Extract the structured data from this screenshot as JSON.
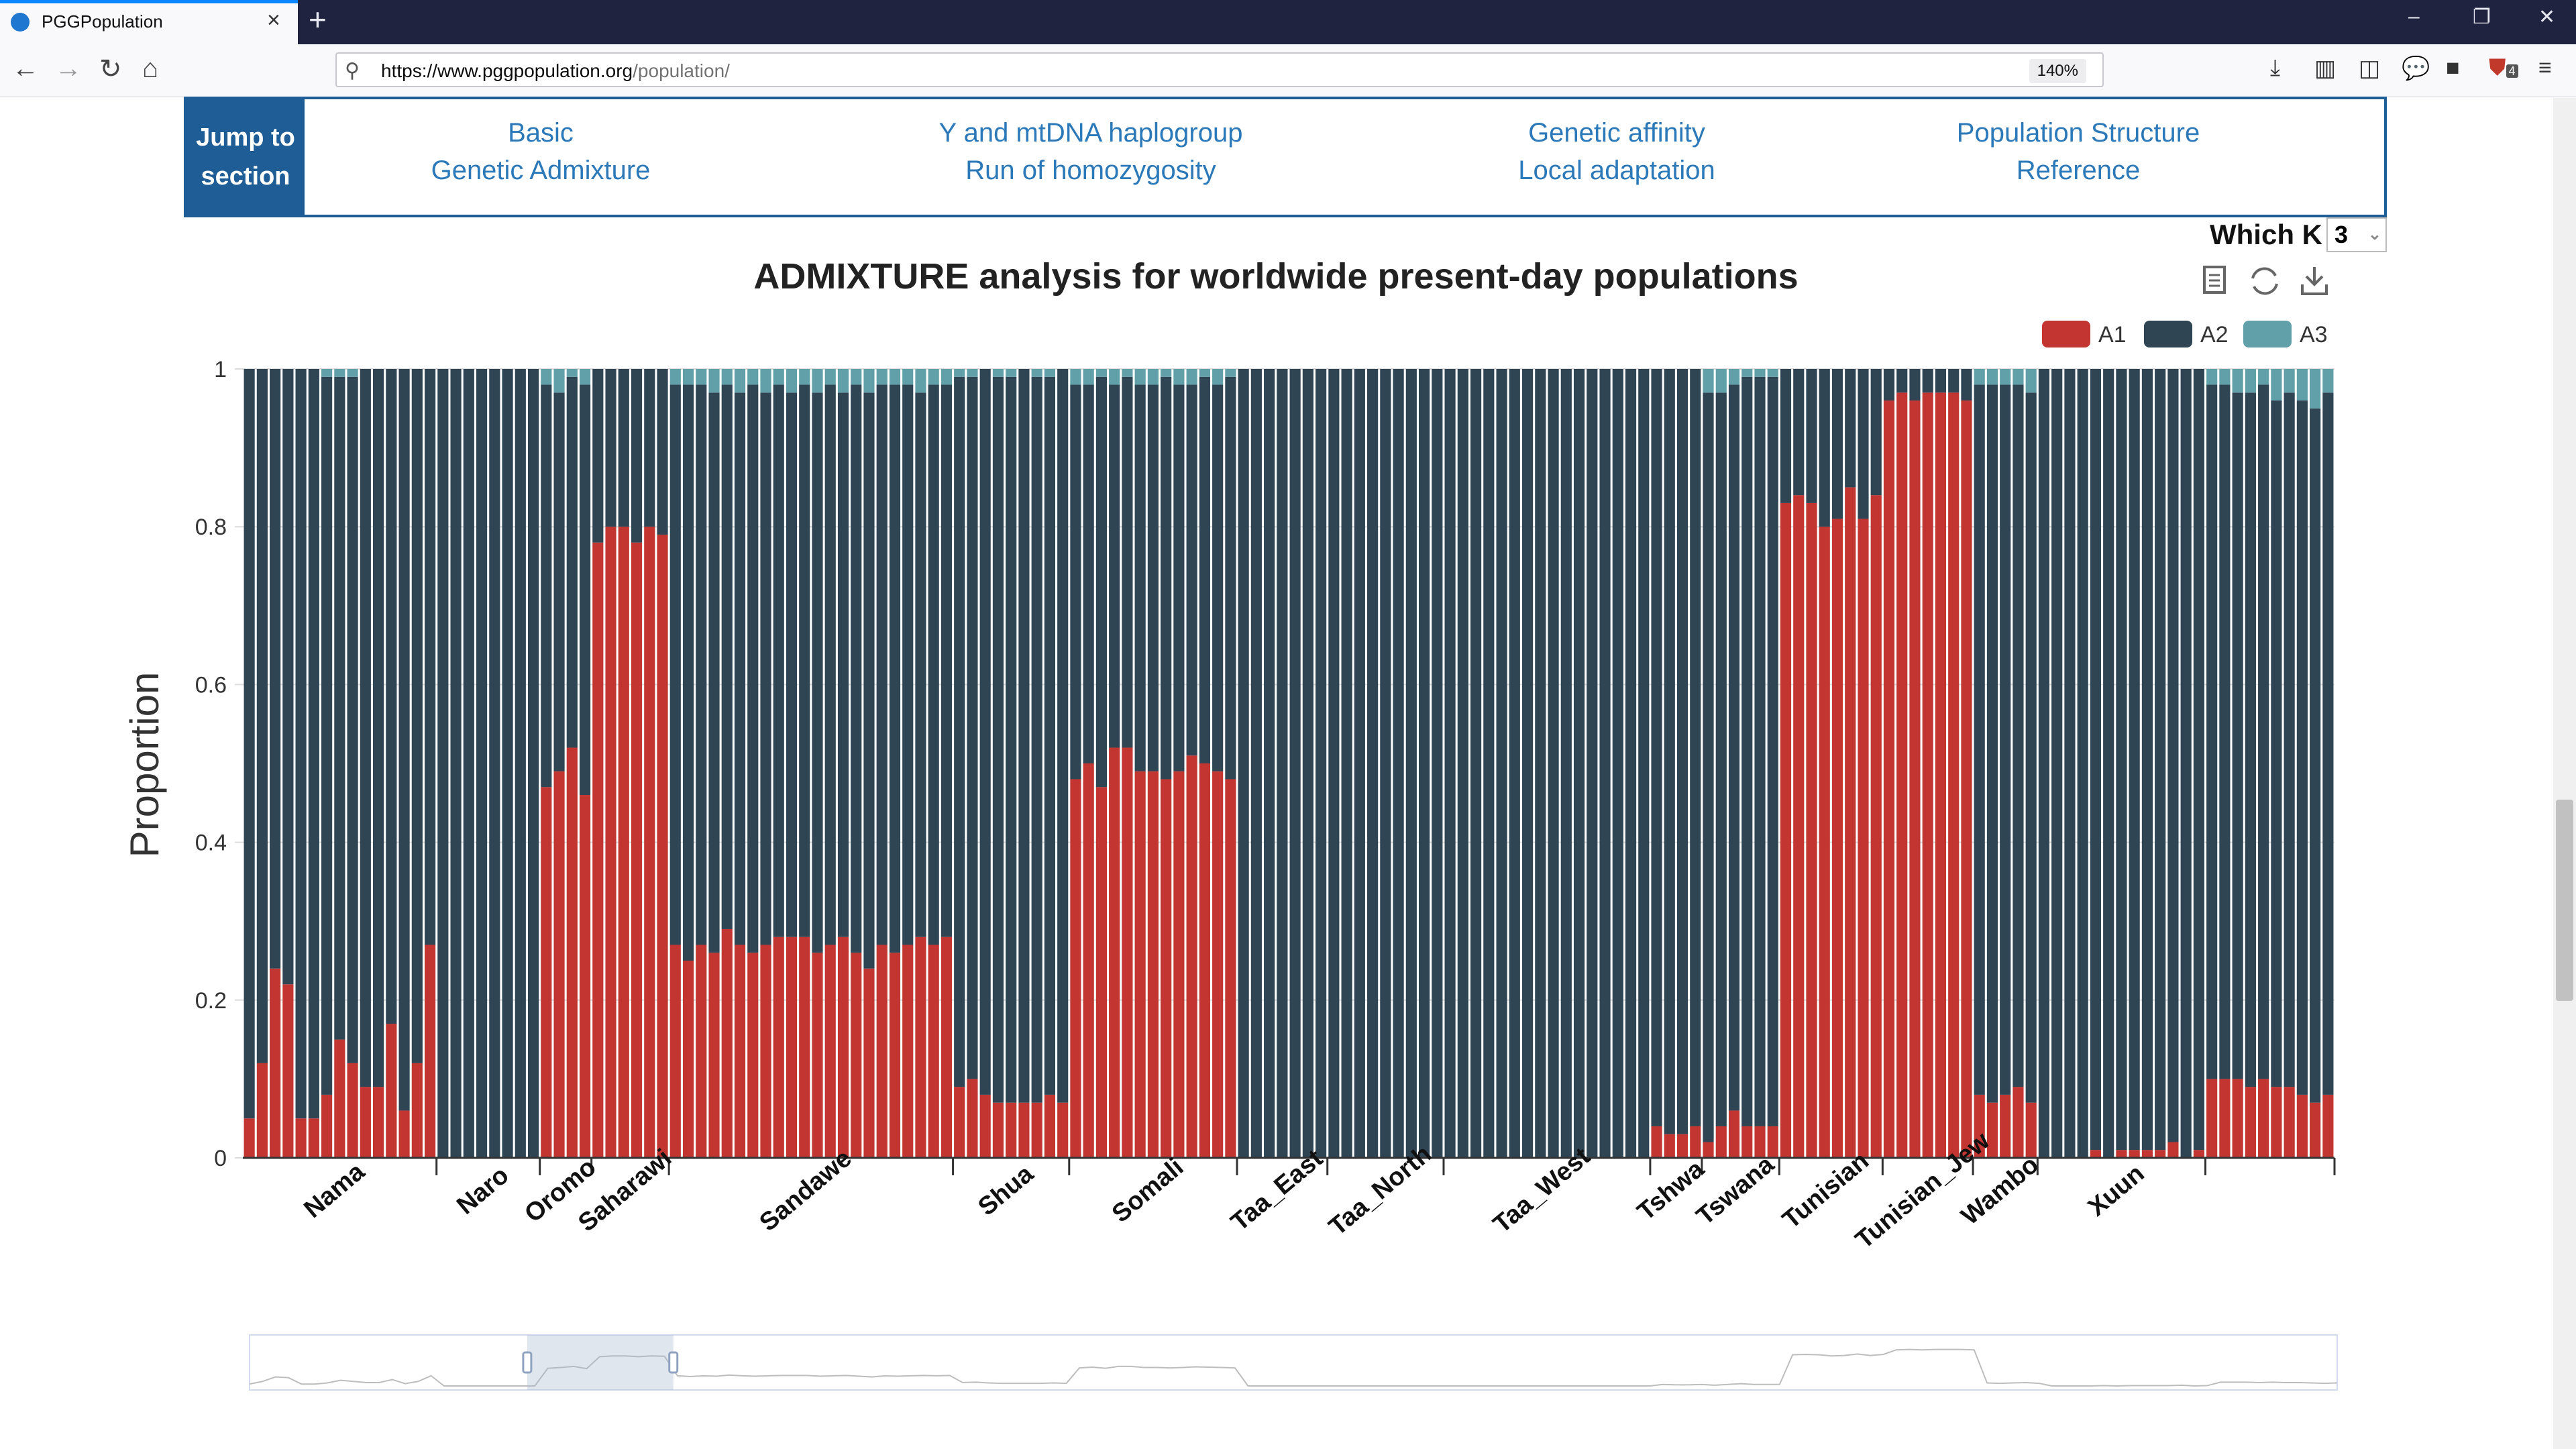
{
  "browser": {
    "tab_title": "PGGPopulation",
    "url_domain": "https://www.pggpopulation.org",
    "url_path": "/population/",
    "zoom": "140%",
    "icons": [
      "back-arrow-icon",
      "forward-arrow-icon",
      "reload-icon",
      "home-icon",
      "download-icon",
      "library-icon",
      "sidebar-icon",
      "chat-icon",
      "extension-icon",
      "ublock-icon",
      "menu-icon"
    ],
    "extension_badge": "4"
  },
  "jump": {
    "label": "Jump to section",
    "links": [
      {
        "top": "Basic",
        "bottom": "Genetic Admixture"
      },
      {
        "top": "Y and mtDNA haplogroup",
        "bottom": "Run of homozygosity"
      },
      {
        "top": "Genetic affinity",
        "bottom": "Local adaptation"
      },
      {
        "top": "Population Structure",
        "bottom": "Reference"
      }
    ]
  },
  "whichk": {
    "label": "Which K",
    "value": "3"
  },
  "colors": {
    "A1": "#c23531",
    "A2": "#2f4554",
    "A3": "#61a0a8",
    "accent": "#1f5d96",
    "link": "#2b79b9"
  },
  "chart_data": {
    "type": "bar",
    "stacked": true,
    "title": "ADMIXTURE analysis for worldwide present-day populations",
    "ylabel": "Proportion",
    "ylim": [
      0,
      1
    ],
    "yticks": [
      "0",
      "0.2",
      "0.4",
      "0.6",
      "0.8",
      "1"
    ],
    "legend": [
      "A1",
      "A2",
      "A3"
    ],
    "legend_position": "top-right",
    "groups": [
      {
        "name": "Nama",
        "A1": [
          0.05,
          0.12,
          0.24,
          0.22,
          0.05,
          0.05,
          0.08,
          0.15,
          0.12,
          0.09,
          0.09,
          0.17,
          0.06,
          0.12,
          0.27
        ],
        "A3": [
          0,
          0,
          0,
          0,
          0,
          0,
          0.01,
          0.01,
          0.01,
          0,
          0,
          0,
          0,
          0,
          0
        ]
      },
      {
        "name": "Naro",
        "A1": [
          0,
          0,
          0,
          0,
          0,
          0,
          0,
          0
        ],
        "A3": [
          0,
          0,
          0,
          0,
          0,
          0,
          0,
          0
        ]
      },
      {
        "name": "Oromo",
        "A1": [
          0.47,
          0.49,
          0.52,
          0.46
        ],
        "A3": [
          0.02,
          0.03,
          0.01,
          0.02
        ]
      },
      {
        "name": "Saharawi",
        "A1": [
          0.78,
          0.8,
          0.8,
          0.78,
          0.8,
          0.79
        ],
        "A3": [
          0,
          0,
          0,
          0,
          0,
          0
        ]
      },
      {
        "name": "Sandawe",
        "A1": [
          0.27,
          0.25,
          0.27,
          0.26,
          0.29,
          0.27,
          0.26,
          0.27,
          0.28,
          0.28,
          0.28,
          0.26,
          0.27,
          0.28,
          0.26,
          0.24,
          0.27,
          0.26,
          0.27,
          0.28,
          0.27,
          0.28
        ],
        "A3": [
          0.02,
          0.02,
          0.02,
          0.03,
          0.02,
          0.03,
          0.02,
          0.03,
          0.02,
          0.03,
          0.02,
          0.03,
          0.02,
          0.03,
          0.02,
          0.03,
          0.02,
          0.02,
          0.02,
          0.03,
          0.02,
          0.02
        ]
      },
      {
        "name": "Shua",
        "A1": [
          0.09,
          0.1,
          0.08,
          0.07,
          0.07,
          0.07,
          0.07,
          0.08,
          0.07
        ],
        "A3": [
          0.01,
          0.01,
          0,
          0.01,
          0.01,
          0,
          0.01,
          0.01,
          0
        ]
      },
      {
        "name": "Somali",
        "A1": [
          0.48,
          0.5,
          0.47,
          0.52,
          0.52,
          0.49,
          0.49,
          0.48,
          0.49,
          0.51,
          0.5,
          0.49,
          0.48
        ],
        "A3": [
          0.02,
          0.02,
          0.01,
          0.02,
          0.01,
          0.02,
          0.02,
          0.01,
          0.02,
          0.02,
          0.01,
          0.02,
          0.01
        ]
      },
      {
        "name": "Taa_East",
        "A1": [
          0,
          0,
          0,
          0,
          0,
          0,
          0
        ],
        "A3": [
          0,
          0,
          0,
          0,
          0,
          0,
          0
        ]
      },
      {
        "name": "Taa_North",
        "A1": [
          0,
          0,
          0,
          0,
          0,
          0,
          0,
          0,
          0
        ],
        "A3": [
          0,
          0,
          0,
          0,
          0,
          0,
          0,
          0,
          0
        ]
      },
      {
        "name": "Taa_West",
        "A1": [
          0,
          0,
          0,
          0,
          0,
          0,
          0,
          0,
          0,
          0,
          0,
          0,
          0,
          0,
          0,
          0
        ],
        "A3": [
          0,
          0,
          0,
          0,
          0,
          0,
          0,
          0,
          0,
          0,
          0,
          0,
          0,
          0,
          0,
          0
        ]
      },
      {
        "name": "Tshwa",
        "A1": [
          0.04,
          0.03,
          0.03,
          0.04
        ],
        "A3": [
          0,
          0,
          0,
          0
        ]
      },
      {
        "name": "Tswana",
        "A1": [
          0.02,
          0.04,
          0.06,
          0.04,
          0.04,
          0.04
        ],
        "A3": [
          0.03,
          0.03,
          0.02,
          0.01,
          0.01,
          0.01
        ]
      },
      {
        "name": "Tunisian",
        "A1": [
          0.83,
          0.84,
          0.83,
          0.8,
          0.81,
          0.85,
          0.81,
          0.84
        ],
        "A3": [
          0,
          0,
          0,
          0,
          0,
          0,
          0,
          0
        ]
      },
      {
        "name": "Tunisian_Jew",
        "A1": [
          0.96,
          0.97,
          0.96,
          0.97,
          0.97,
          0.97,
          0.96
        ],
        "A3": [
          0,
          0,
          0,
          0,
          0,
          0,
          0
        ]
      },
      {
        "name": "Wambo",
        "A1": [
          0.08,
          0.07,
          0.08,
          0.09,
          0.07
        ],
        "A3": [
          0.02,
          0.02,
          0.02,
          0.02,
          0.03
        ]
      },
      {
        "name": "Xuun",
        "A1": [
          0,
          0,
          0,
          0,
          0.01,
          0,
          0.01,
          0.01,
          0.01,
          0.01,
          0.02,
          0,
          0.01
        ],
        "A3": [
          0,
          0,
          0,
          0,
          0,
          0,
          0,
          0,
          0,
          0,
          0,
          0,
          0
        ]
      },
      {
        "name": "",
        "A1": [
          0.1,
          0.1,
          0.1,
          0.09,
          0.1,
          0.09,
          0.09,
          0.08,
          0.07,
          0.08
        ],
        "A3": [
          0.02,
          0.02,
          0.03,
          0.03,
          0.02,
          0.04,
          0.03,
          0.04,
          0.05,
          0.03
        ]
      }
    ],
    "datazoom": {
      "start": 0.133,
      "end": 0.203
    }
  }
}
